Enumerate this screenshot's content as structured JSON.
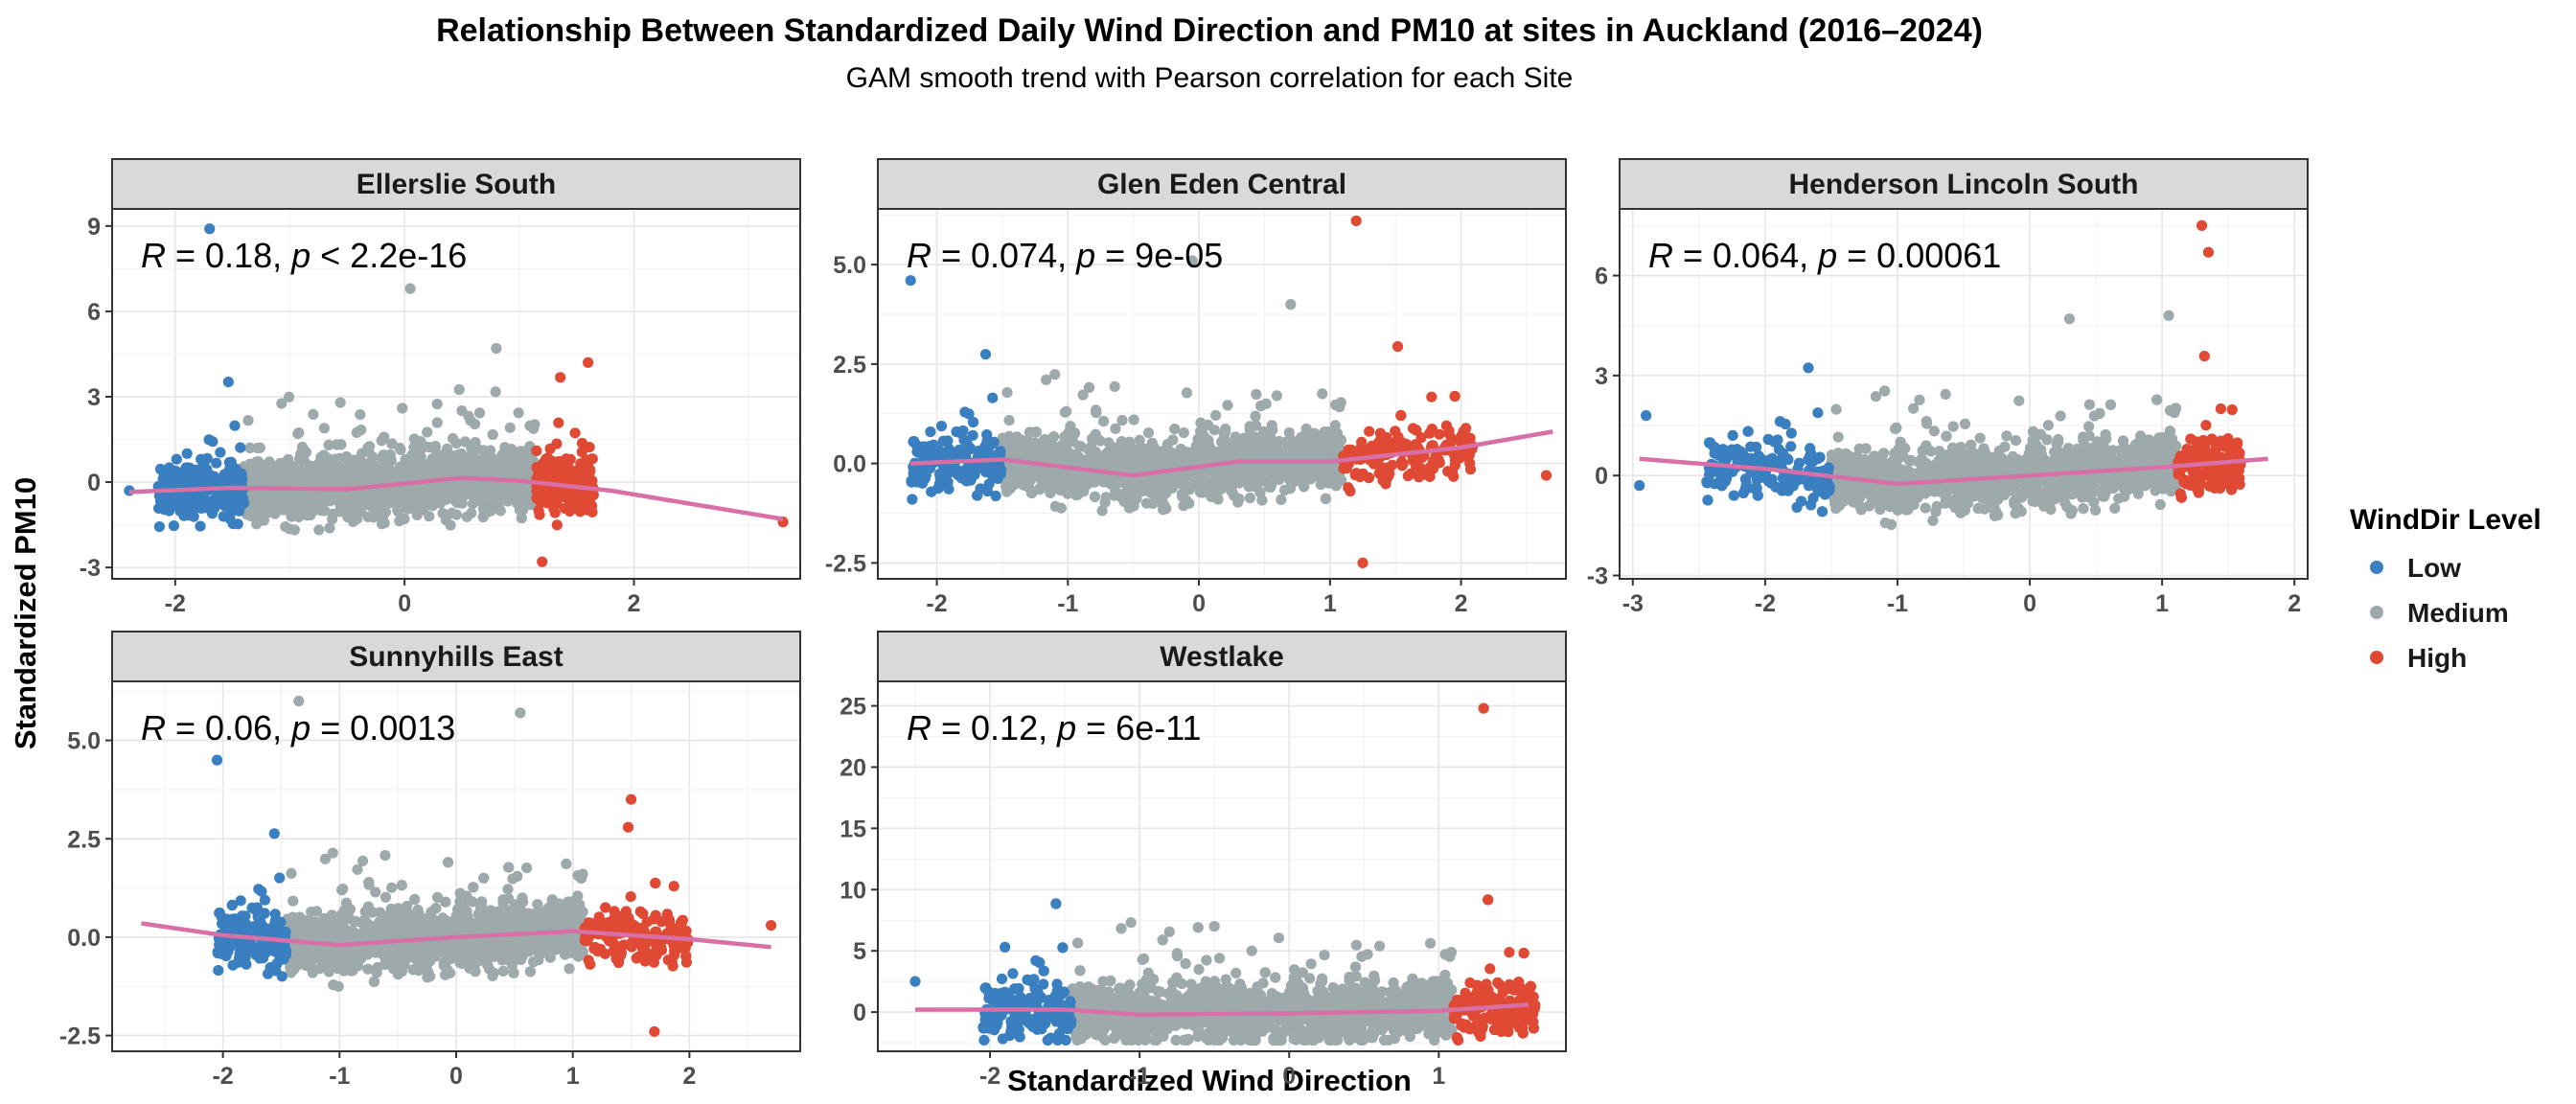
{
  "colors": {
    "low": "#3a7fbf",
    "medium": "#9ea9ab",
    "high": "#e04a35",
    "smooth": "#d86fa6"
  },
  "chart_data": {
    "type": "scatter",
    "title": "Relationship Between Standardized Daily Wind Direction and PM10 at sites in Auckland (2016–2024)",
    "subtitle": "GAM smooth trend with Pearson correlation for each Site",
    "xlabel": "Standardized Wind Direction",
    "ylabel": "Standardized PM10",
    "legend": {
      "title": "WindDir Level",
      "position": "right",
      "items": [
        "Low",
        "Medium",
        "High"
      ]
    },
    "grid": true,
    "panels": [
      {
        "site": "Ellerslie South",
        "annotation": {
          "R": "0.18",
          "p": "< 2.2e-16"
        },
        "xlim": [
          -2.55,
          3.45
        ],
        "ylim": [
          -3.4,
          9.6
        ],
        "xticks": [
          -2,
          0,
          2
        ],
        "yticks": [
          -3,
          0,
          3,
          6,
          9
        ],
        "low_range": [
          -2.15,
          -1.4
        ],
        "high_range": [
          1.15,
          1.65
        ],
        "smooth": [
          [
            -2.4,
            -0.35
          ],
          [
            -1.5,
            -0.2
          ],
          [
            -0.5,
            -0.25
          ],
          [
            0.5,
            0.15
          ],
          [
            1.0,
            0.05
          ],
          [
            1.8,
            -0.3
          ],
          [
            3.3,
            -1.3
          ]
        ],
        "outliers": [
          [
            -1.7,
            8.9
          ],
          [
            0.05,
            6.8
          ],
          [
            0.8,
            4.7
          ],
          [
            1.6,
            4.2
          ],
          [
            3.3,
            -1.4
          ],
          [
            -2.4,
            -0.3
          ],
          [
            1.2,
            -2.8
          ]
        ]
      },
      {
        "site": "Glen Eden Central",
        "annotation": {
          "R": "0.074",
          "p": "9e-05"
        },
        "xlim": [
          -2.45,
          2.8
        ],
        "ylim": [
          -2.9,
          6.4
        ],
        "xticks": [
          -2,
          -1,
          0,
          1,
          2
        ],
        "yticks": [
          -2.5,
          0.0,
          2.5,
          5.0
        ],
        "low_range": [
          -2.2,
          -1.5
        ],
        "high_range": [
          1.1,
          2.1
        ],
        "smooth": [
          [
            -2.2,
            0.0
          ],
          [
            -1.5,
            0.1
          ],
          [
            -0.5,
            -0.3
          ],
          [
            0.3,
            0.05
          ],
          [
            1.0,
            0.05
          ],
          [
            2.0,
            0.4
          ],
          [
            2.7,
            0.8
          ]
        ],
        "outliers": [
          [
            1.2,
            6.1
          ],
          [
            -0.05,
            5.1
          ],
          [
            -2.2,
            4.6
          ],
          [
            0.7,
            4.0
          ],
          [
            2.65,
            -0.3
          ],
          [
            1.25,
            -2.5
          ]
        ]
      },
      {
        "site": "Henderson Lincoln South",
        "annotation": {
          "R": "0.064",
          "p": "0.00061"
        },
        "xlim": [
          -3.1,
          2.1
        ],
        "ylim": [
          -3.1,
          8.0
        ],
        "xticks": [
          -3,
          -2,
          -1,
          0,
          1,
          2
        ],
        "yticks": [
          -3,
          0,
          3,
          6
        ],
        "low_range": [
          -2.45,
          -1.5
        ],
        "high_range": [
          1.12,
          1.6
        ],
        "smooth": [
          [
            -2.95,
            0.5
          ],
          [
            -2.0,
            0.2
          ],
          [
            -1.0,
            -0.25
          ],
          [
            0.0,
            0.0
          ],
          [
            1.0,
            0.25
          ],
          [
            1.8,
            0.5
          ]
        ],
        "outliers": [
          [
            1.3,
            7.5
          ],
          [
            1.35,
            6.7
          ],
          [
            1.05,
            4.8
          ],
          [
            -2.9,
            1.8
          ],
          [
            -2.95,
            -0.3
          ],
          [
            0.3,
            4.7
          ]
        ]
      },
      {
        "site": "Sunnyhills East",
        "annotation": {
          "R": "0.06",
          "p": "0.0013"
        },
        "xlim": [
          -2.95,
          2.95
        ],
        "ylim": [
          -2.9,
          6.5
        ],
        "xticks": [
          -2,
          -1,
          0,
          1,
          2
        ],
        "yticks": [
          -2.5,
          0.0,
          2.5,
          5.0
        ],
        "low_range": [
          -2.05,
          -1.45
        ],
        "high_range": [
          1.1,
          2.0
        ],
        "smooth": [
          [
            -2.7,
            0.35
          ],
          [
            -2.0,
            0.05
          ],
          [
            -1.0,
            -0.2
          ],
          [
            0.0,
            0.0
          ],
          [
            1.0,
            0.15
          ],
          [
            2.0,
            -0.05
          ],
          [
            2.7,
            -0.25
          ]
        ],
        "outliers": [
          [
            -1.35,
            6.0
          ],
          [
            0.55,
            5.7
          ],
          [
            -2.05,
            4.5
          ],
          [
            1.5,
            3.5
          ],
          [
            2.7,
            0.3
          ],
          [
            1.7,
            -2.4
          ]
        ]
      },
      {
        "site": "Westlake",
        "annotation": {
          "R": "0.12",
          "p": "6e-11"
        },
        "xlim": [
          -2.75,
          1.85
        ],
        "ylim": [
          -3.2,
          27.0
        ],
        "xticks": [
          -2,
          -1,
          0,
          1
        ],
        "yticks": [
          0,
          5,
          10,
          15,
          20,
          25
        ],
        "low_range": [
          -2.05,
          -1.45
        ],
        "high_range": [
          1.1,
          1.65
        ],
        "smooth": [
          [
            -2.5,
            0.2
          ],
          [
            -1.5,
            0.2
          ],
          [
            -1.0,
            -0.2
          ],
          [
            0.0,
            -0.1
          ],
          [
            1.0,
            0.1
          ],
          [
            1.6,
            0.6
          ]
        ],
        "outliers": [
          [
            1.3,
            24.8
          ],
          [
            -0.5,
            7.0
          ],
          [
            -1.9,
            5.3
          ],
          [
            -0.25,
            5.0
          ],
          [
            -2.5,
            2.5
          ]
        ]
      }
    ]
  }
}
